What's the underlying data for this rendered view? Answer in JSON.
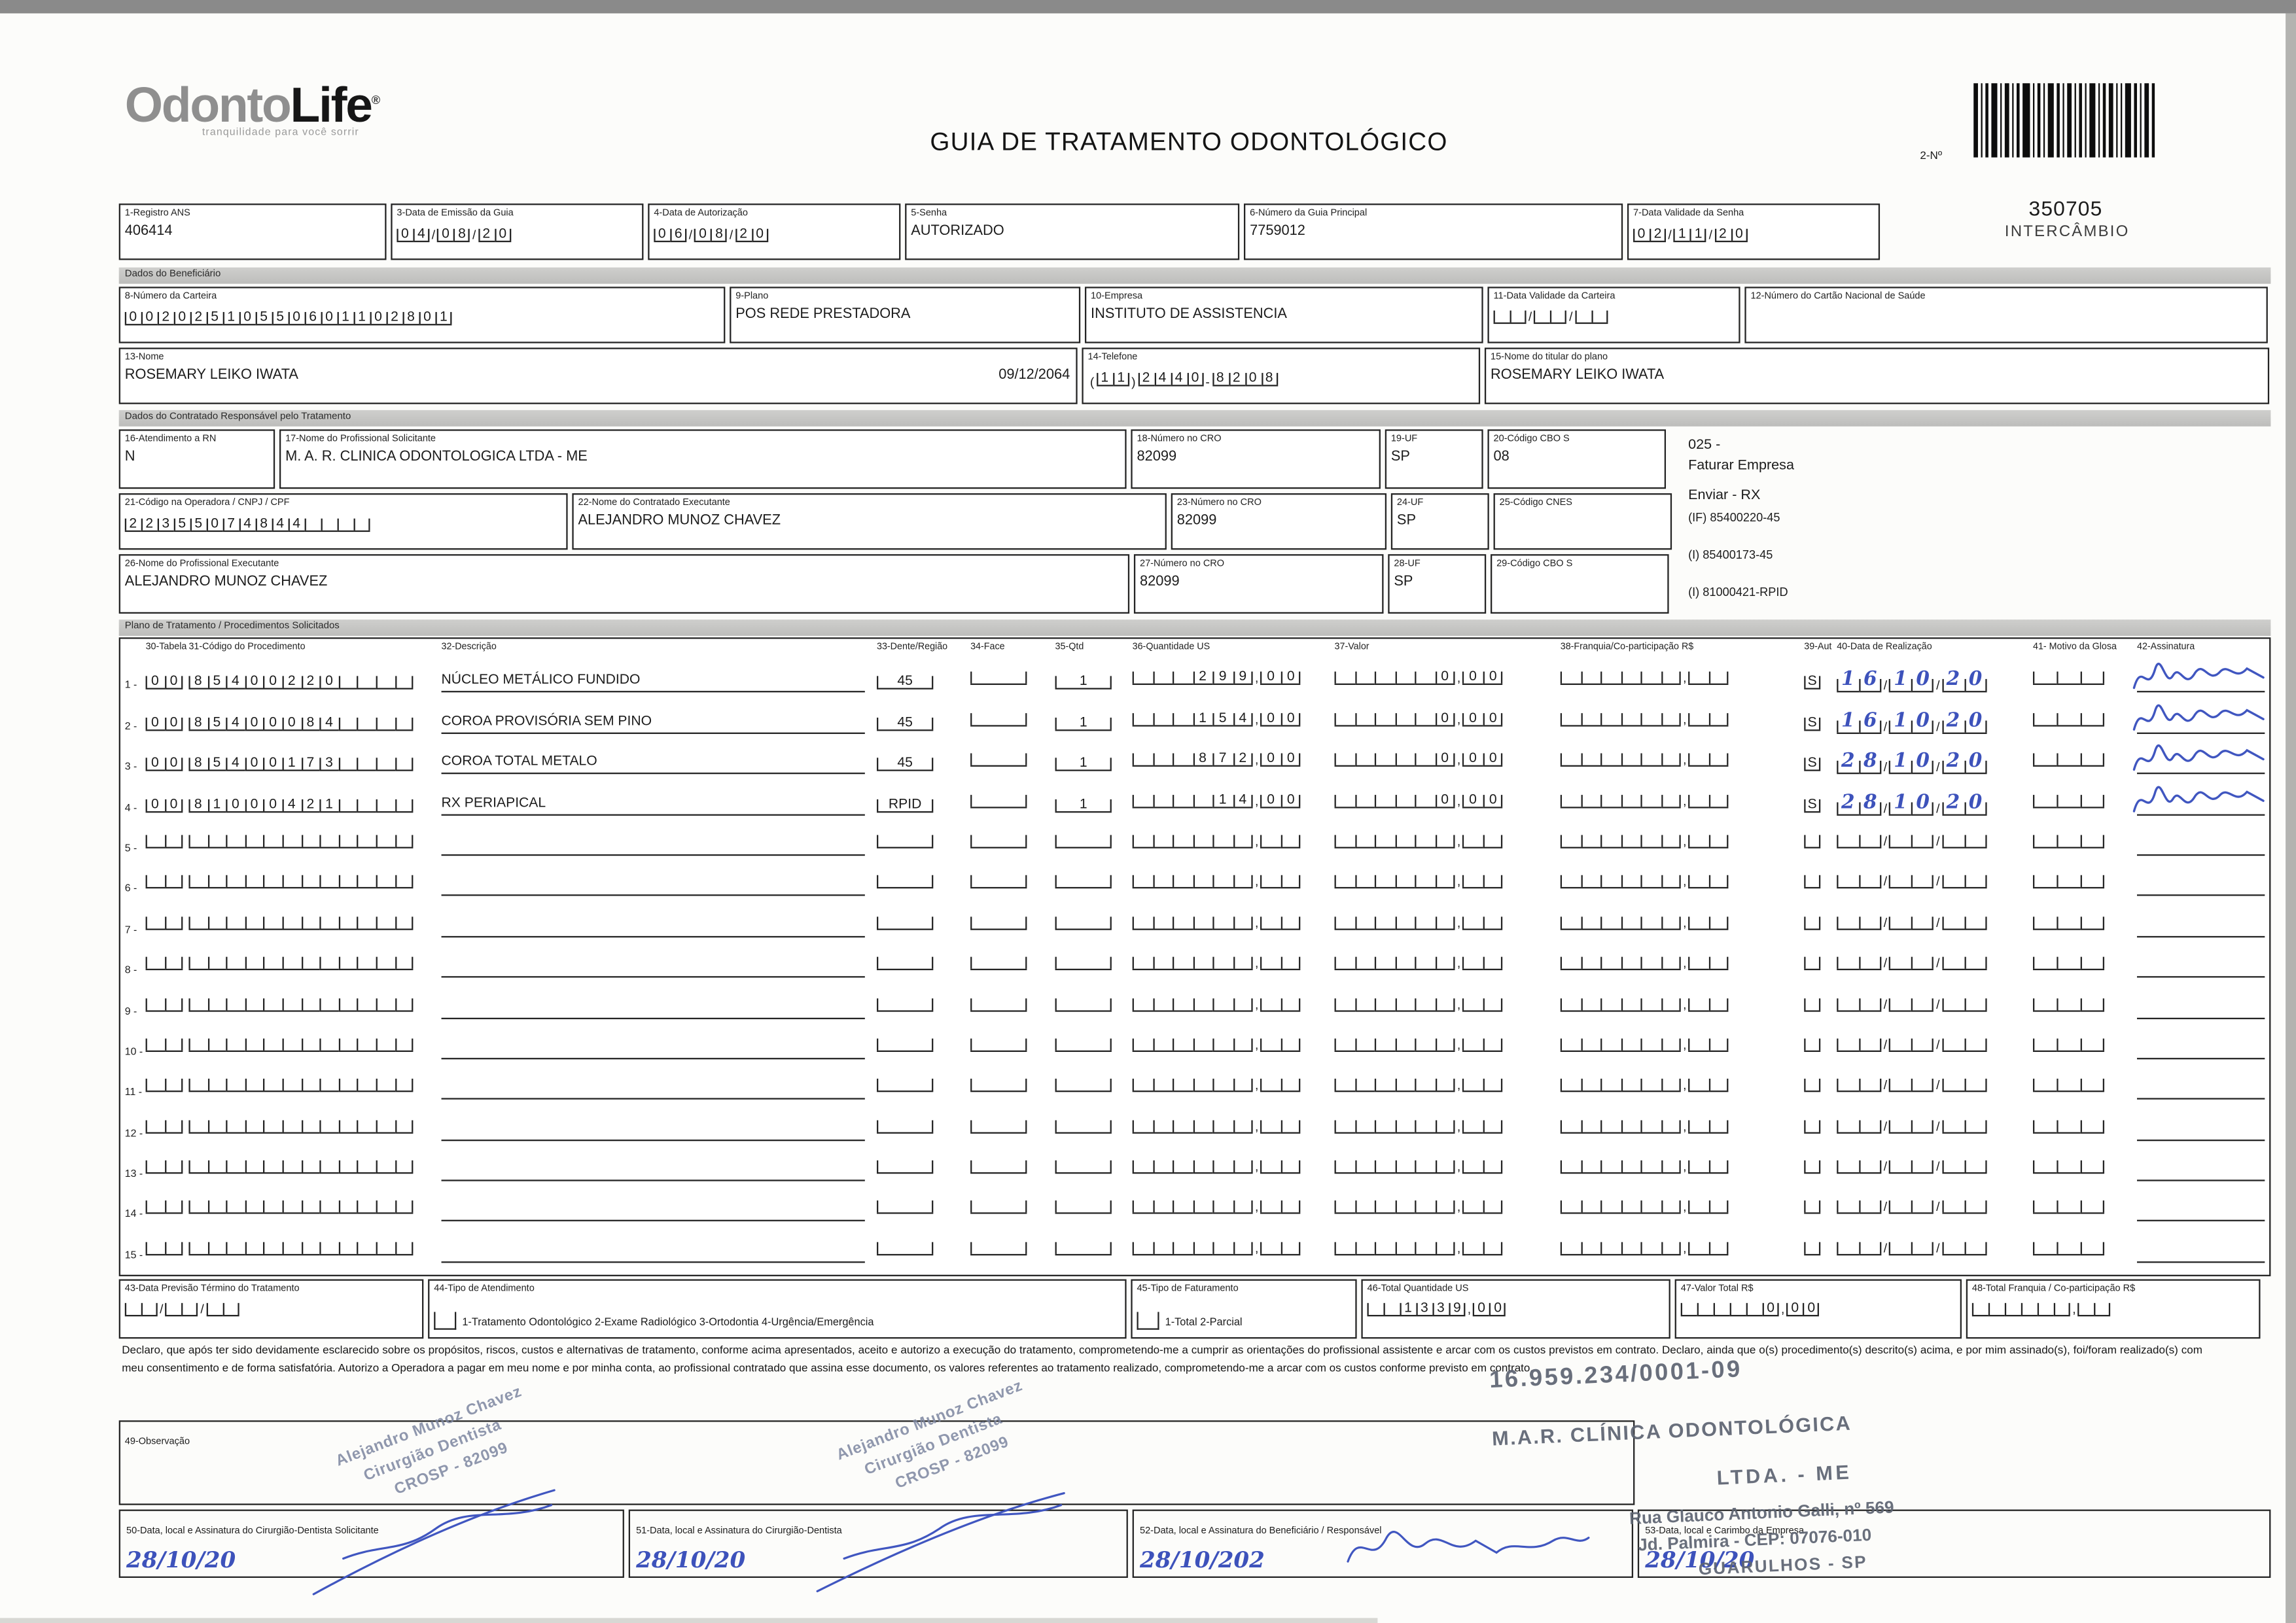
{
  "header": {
    "logo_main": "Odonto",
    "logo_accent": "Life",
    "logo_reg": "®",
    "tagline": "tranquilidade para você sorrir",
    "title": "GUIA DE TRATAMENTO ODONTOLÓGICO",
    "barcode_label": "2-Nº",
    "barcode_number": "350705",
    "barcode_sub": "INTERCÂMBIO"
  },
  "fields": {
    "f1": {
      "label": "1-Registro ANS",
      "value": "406414"
    },
    "f3": {
      "label": "3-Data de Emissão da Guia",
      "value": "04/08/20"
    },
    "f4": {
      "label": "4-Data de Autorização",
      "value": "06/08/20"
    },
    "f5": {
      "label": "5-Senha",
      "value": "AUTORIZADO"
    },
    "f6": {
      "label": "6-Número da Guia Principal",
      "value": "7759012"
    },
    "f7": {
      "label": "7-Data Validade da Senha",
      "value": "02/11/20"
    },
    "f8": {
      "label": "8-Número da Carteira",
      "value": "00202510550601102801"
    },
    "f9": {
      "label": "9-Plano",
      "value": "POS REDE PRESTADORA"
    },
    "f10": {
      "label": "10-Empresa",
      "value": "INSTITUTO DE ASSISTENCIA"
    },
    "f11": {
      "label": "11-Data Validade da Carteira",
      "value": ""
    },
    "f12": {
      "label": "12-Número do Cartão Nacional de Saúde",
      "value": ""
    },
    "f13": {
      "label": "13-Nome",
      "value": "ROSEMARY LEIKO IWATA",
      "birthdate": "09/12/2064"
    },
    "f14": {
      "label": "14-Telefone",
      "ddd": "11",
      "part1": "2440",
      "part2": "8208"
    },
    "f15": {
      "label": "15-Nome do titular do plano",
      "value": "ROSEMARY LEIKO IWATA"
    },
    "f16": {
      "label": "16-Atendimento a RN",
      "value": "N"
    },
    "f17": {
      "label": "17-Nome do Profissional Solicitante",
      "value": "M. A. R. CLINICA ODONTOLOGICA LTDA - ME"
    },
    "f18": {
      "label": "18-Número no CRO",
      "value": "82099"
    },
    "f19": {
      "label": "19-UF",
      "value": "SP"
    },
    "f20": {
      "label": "20-Código CBO S",
      "value": "08"
    },
    "f21": {
      "label": "21-Código na Operadora / CNPJ / CPF",
      "value": "22355074844"
    },
    "f22": {
      "label": "22-Nome do Contratado Executante",
      "value": "ALEJANDRO MUNOZ CHAVEZ"
    },
    "f23": {
      "label": "23-Número no CRO",
      "value": "82099"
    },
    "f24": {
      "label": "24-UF",
      "value": "SP"
    },
    "f25": {
      "label": "25-Código CNES",
      "value": ""
    },
    "f26": {
      "label": "26-Nome do Profissional Executante",
      "value": "ALEJANDRO MUNOZ CHAVEZ"
    },
    "f27": {
      "label": "27-Número no CRO",
      "value": "82099"
    },
    "f28": {
      "label": "28-UF",
      "value": "SP"
    },
    "f29": {
      "label": "29-Código CBO S",
      "value": ""
    },
    "f43": {
      "label": "43-Data Previsão Término do Tratamento",
      "value": ""
    },
    "f44": {
      "label": "44-Tipo de Atendimento",
      "options": "1-Tratamento Odontológico  2-Exame Radiológico  3-Ortodontia  4-Urgência/Emergência",
      "value": ""
    },
    "f45": {
      "label": "45-Tipo de Faturamento",
      "options": "1-Total  2-Parcial",
      "value": ""
    },
    "f46": {
      "label": "46-Total Quantidade US",
      "value": "1339,00"
    },
    "f47": {
      "label": "47-Valor Total R$",
      "value": "0,00"
    },
    "f48": {
      "label": "48-Total Franquia / Co-participação R$",
      "value": ""
    },
    "f49": {
      "label": "49-Observação"
    },
    "f50": {
      "label": "50-Data, local e Assinatura do Cirurgião-Dentista Solicitante",
      "value": "28/10/20"
    },
    "f51": {
      "label": "51-Data, local e Assinatura do Cirurgião-Dentista",
      "value": "28/10/20"
    },
    "f52": {
      "label": "52-Data, local e Assinatura do Beneficiário / Responsável",
      "value": "28/10/202"
    },
    "f53": {
      "label": "53-Data, local e Carimbo da Empresa",
      "value": "28/10/20"
    }
  },
  "sections": {
    "beneficiario": "Dados do Beneficiário",
    "contratado": "Dados do Contratado Responsável pelo Tratamento",
    "plano": "Plano de Tratamento / Procedimentos Solicitados"
  },
  "side_notes": {
    "n1": "025 -",
    "n2": "Faturar Empresa",
    "n3": "Enviar - RX",
    "n4": "(IF) 85400220-45",
    "n5": "(I) 85400173-45",
    "n6": "(I) 81000421-RPID"
  },
  "procedures": {
    "headers": [
      "30-Tabela",
      "31-Código do Procedimento",
      "32-Descrição",
      "33-Dente/Região",
      "34-Face",
      "35-Qtd",
      "36-Quantidade US",
      "37-Valor",
      "38-Franquia/Co-participação R$",
      "39-Aut",
      "40-Data de Realização",
      "41- Motivo da Glosa",
      "42-Assinatura"
    ],
    "rows": [
      {
        "num": "1",
        "tabela": "00",
        "codigo": "85400220",
        "descricao": "NÚCLEO METÁLICO FUNDIDO",
        "dente": "45",
        "face": "",
        "qtd": "1",
        "us": "299,00",
        "valor": "0,00",
        "franquia": "",
        "aut": "S",
        "data": "16/10/20",
        "glosa": "",
        "signed": true
      },
      {
        "num": "2",
        "tabela": "00",
        "codigo": "85400084",
        "descricao": "COROA PROVISÓRIA SEM PINO",
        "dente": "45",
        "face": "",
        "qtd": "1",
        "us": "154,00",
        "valor": "0,00",
        "franquia": "",
        "aut": "S",
        "data": "16/10/20",
        "glosa": "",
        "signed": true
      },
      {
        "num": "3",
        "tabela": "00",
        "codigo": "85400173",
        "descricao": "COROA TOTAL METALO",
        "dente": "45",
        "face": "",
        "qtd": "1",
        "us": "872,00",
        "valor": "0,00",
        "franquia": "",
        "aut": "S",
        "data": "28/10/20",
        "glosa": "",
        "signed": true
      },
      {
        "num": "4",
        "tabela": "00",
        "codigo": "81000421",
        "descricao": "RX PERIAPICAL",
        "dente": "RPID",
        "face": "",
        "qtd": "1",
        "us": "14,00",
        "valor": "0,00",
        "franquia": "",
        "aut": "S",
        "data": "28/10/20",
        "glosa": "",
        "signed": true
      },
      {
        "num": "5"
      },
      {
        "num": "6"
      },
      {
        "num": "7"
      },
      {
        "num": "8"
      },
      {
        "num": "9"
      },
      {
        "num": "10"
      },
      {
        "num": "11"
      },
      {
        "num": "12"
      },
      {
        "num": "13"
      },
      {
        "num": "14"
      },
      {
        "num": "15"
      }
    ]
  },
  "declaration": "Declaro, que após ter sido devidamente esclarecido sobre os propósitos, riscos, custos e alternativas de tratamento, conforme acima apresentados, aceito e autorizo a execução do tratamento, comprometendo-me a cumprir as orientações do profissional assistente e arcar com os custos previstos em contrato. Declaro, ainda que o(s) procedimento(s) descrito(s) acima, e por mim assinado(s), foi/foram realizado(s) com meu consentimento e de forma satisfatória. Autorizo a Operadora a pagar em meu nome e por minha conta, ao profissional contratado que assina esse documento, os valores referentes ao tratamento realizado, comprometendo-me a arcar com os custos conforme previsto em contrato.",
  "stamps": {
    "dentist": {
      "l1": "Alejandro Munoz Chavez",
      "l2": "Cirurgião Dentista",
      "l3": "CROSP - 82099"
    },
    "company": {
      "cnpj": "16.959.234/0001-09",
      "name": "M.A.R. CLÍNICA ODONTOLÓGICA",
      "suffix": "LTDA. - ME",
      "addr1": "Rua Glauco Antonio Galli, nº 569",
      "addr2": "Jd. Palmira -  CEP: 07076-010",
      "addr3": "GUARULHOS - SP"
    }
  },
  "colors": {
    "ink": "#1c1c1c",
    "hand_blue": "#3d52bb",
    "stamp_gray": "#5d6472"
  }
}
